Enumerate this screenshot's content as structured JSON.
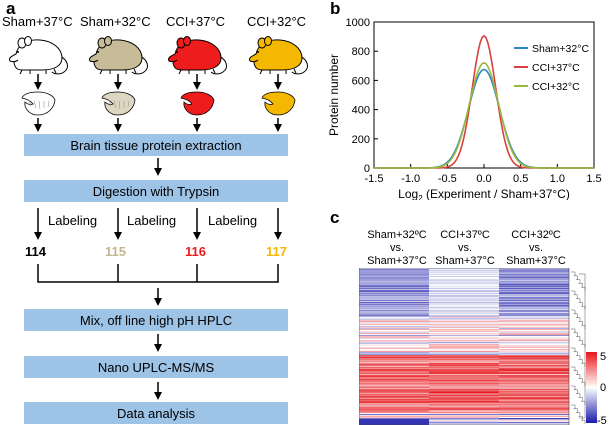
{
  "panel_a": {
    "letter": "a",
    "conditions": [
      {
        "label": "Sham+37°C",
        "body_color": "#ffffff",
        "tissue_color": "#ffffff"
      },
      {
        "label": "Sham+32°C",
        "body_color": "#c7bb98",
        "tissue_color": "#ded6c1"
      },
      {
        "label": "CCI+37°C",
        "body_color": "#ee1c1c",
        "tissue_color": "#ee1c1c"
      },
      {
        "label": "CCI+32°C",
        "body_color": "#f5b800",
        "tissue_color": "#f5b800"
      }
    ],
    "icons": {
      "animal": "mouse-icon",
      "tissue": "brain-tissue-icon"
    },
    "steps": {
      "extraction": "Brain tissue protein extraction",
      "digestion": "Digestion with Trypsin",
      "mix": "Mix, off line high pH HPLC",
      "nano": "Nano UPLC-MS/MS",
      "analysis": "Data analysis"
    },
    "labeling": [
      "Labeling",
      "Labeling",
      "Labeling"
    ],
    "tmt": [
      {
        "label": "114",
        "color": "#000000"
      },
      {
        "label": "115",
        "color": "#c4b58e"
      },
      {
        "label": "116",
        "color": "#ee1c1c"
      },
      {
        "label": "117",
        "color": "#f5b800"
      }
    ],
    "box_color": "#9dc3e6"
  },
  "panel_b": {
    "letter": "b",
    "chart_data": {
      "type": "line",
      "title": "",
      "ylabel": "Protein number",
      "xlabel_prefix": "Log",
      "xlabel_sub": "2",
      "xlabel_rest": " (Experiment / Sham+37°C)",
      "xlim": [
        -1.5,
        1.5
      ],
      "ylim": [
        0,
        1000
      ],
      "xticks": [
        "-1.5",
        "-1.0",
        "-0.5",
        "0.0",
        "0.5",
        "1.0",
        "1.5"
      ],
      "yticks": [
        "0",
        "200",
        "400",
        "600",
        "800",
        "1000"
      ],
      "legend_position": "top-right",
      "series": [
        {
          "name": "Sham+32°C",
          "color": "#2e86c1",
          "peak_x": 0.0,
          "peak_y": 675,
          "sigma": 0.21
        },
        {
          "name": "CCI+37°C",
          "color": "#d94040",
          "peak_x": 0.0,
          "peak_y": 905,
          "sigma": 0.16
        },
        {
          "name": "CCI+32°C",
          "color": "#9ab83c",
          "peak_x": 0.0,
          "peak_y": 720,
          "sigma": 0.2
        }
      ]
    }
  },
  "panel_c": {
    "letter": "c",
    "comparisons": [
      {
        "top": "Sham+32ºC",
        "vs": "vs.",
        "bottom": "Sham+37°C"
      },
      {
        "top": "CCI+37ºC",
        "vs": "vs.",
        "bottom": "Sham+37°C"
      },
      {
        "top": "CCI+32ºC",
        "vs": "vs.",
        "bottom": "Sham+37°C"
      }
    ],
    "scale": {
      "max": "5",
      "mid": "0",
      "min": "-5"
    }
  }
}
